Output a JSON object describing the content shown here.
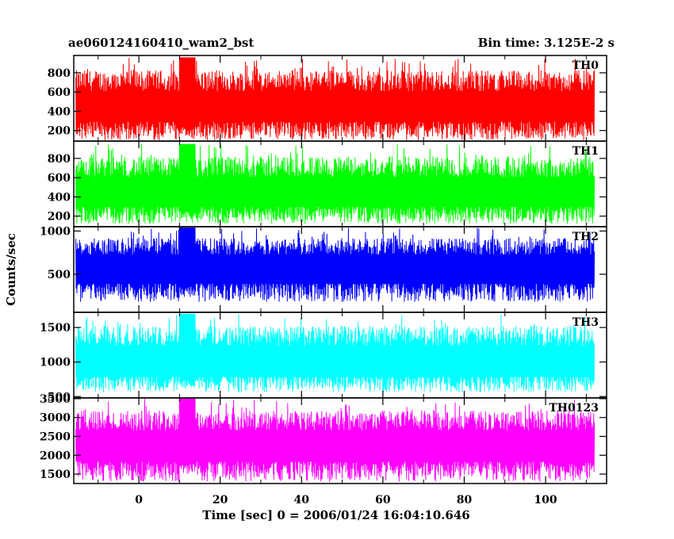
{
  "chart_data": {
    "type": "line",
    "title": "ae060124160410_wam2_bst",
    "subtitle": "Bin time: 3.125E-2 s",
    "xlabel": "Time [sec] 0 = 2006/01/24 16:04:10.646",
    "ylabel": "Counts/sec",
    "xlim": [
      -16,
      115
    ],
    "x_ticks": [
      0,
      20,
      40,
      60,
      80,
      100
    ],
    "grid": false,
    "x_range_data": [
      -15.5,
      112
    ],
    "panels": [
      {
        "name": "TH0",
        "color": "#ff0000",
        "ylim": [
          90,
          980
        ],
        "y_ticks": [
          200,
          400,
          600,
          800
        ],
        "min": 100,
        "max": 960,
        "mean": 430,
        "spread": 310,
        "burst": {
          "from": 10,
          "to": 14,
          "dip_to": 110
        }
      },
      {
        "name": "TH1",
        "color": "#00ff00",
        "ylim": [
          90,
          980
        ],
        "y_ticks": [
          200,
          400,
          600,
          800
        ],
        "min": 120,
        "max": 950,
        "mean": 430,
        "spread": 300,
        "burst": {
          "from": 10,
          "to": 14,
          "dip_to": 130
        }
      },
      {
        "name": "TH2",
        "color": "#0000ff",
        "ylim": [
          60,
          1050
        ],
        "y_ticks": [
          500,
          1000
        ],
        "min": 180,
        "max": 1040,
        "mean": 560,
        "spread": 380,
        "burst": {
          "from": 10,
          "to": 14,
          "dip_to": 220
        }
      },
      {
        "name": "TH3",
        "color": "#00ffff",
        "ylim": [
          480,
          1720
        ],
        "y_ticks": [
          500,
          1000,
          1500
        ],
        "min": 560,
        "max": 1700,
        "mean": 1000,
        "spread": 480,
        "burst": {
          "from": 10,
          "to": 14,
          "dip_to": 600
        }
      },
      {
        "name": "TH0123",
        "color": "#ff00ff",
        "ylim": [
          1250,
          3520
        ],
        "y_ticks": [
          1500,
          2000,
          2500,
          3000,
          3500
        ],
        "min": 1300,
        "max": 3500,
        "mean": 2230,
        "spread": 900,
        "burst": {
          "from": 10,
          "to": 14,
          "dip_to": 1500
        }
      }
    ]
  }
}
